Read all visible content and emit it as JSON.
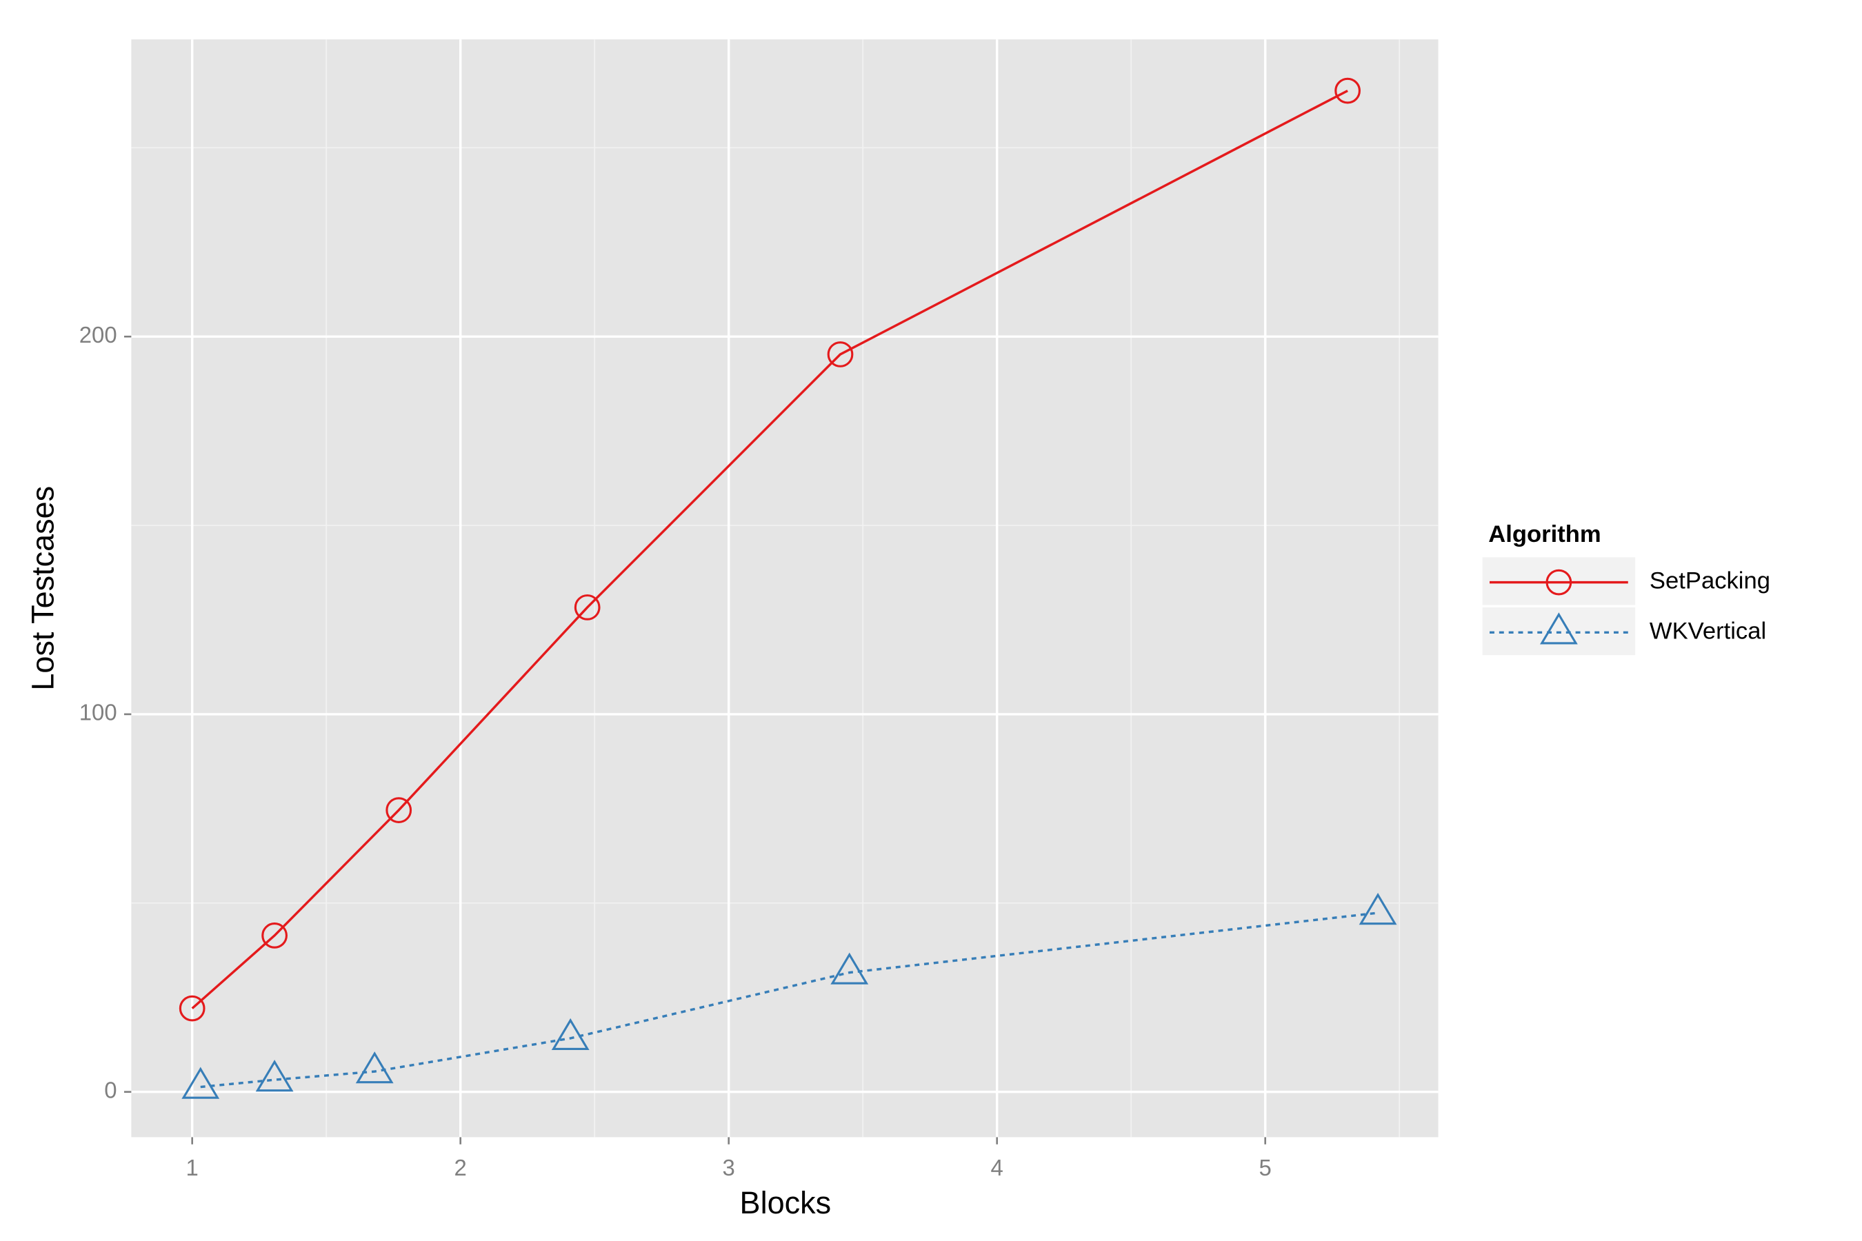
{
  "chart_data": {
    "type": "line",
    "x_label": "Blocks",
    "y_label": "Lost Testcases",
    "legend_title": "Algorithm",
    "legend": "right",
    "xlim": [
      0.773,
      5.645
    ],
    "ylim": [
      -12,
      278.7
    ],
    "xticks": [
      1,
      2,
      3,
      4,
      5
    ],
    "yticks": [
      0,
      100,
      200
    ],
    "grid": true,
    "series": [
      {
        "name": "SetPacking",
        "color": "#e41a1c",
        "marker": "circle",
        "line_style": "solid",
        "x": [
          1.0,
          1.307,
          1.77,
          2.473,
          3.416,
          5.307
        ],
        "values": [
          22.1,
          41.4,
          74.6,
          128.3,
          195.3,
          265.1
        ]
      },
      {
        "name": "WKVertical",
        "color": "#377eb8",
        "marker": "triangle",
        "line_style": "dotted",
        "x": [
          1.031,
          1.307,
          1.68,
          2.41,
          3.45,
          5.42
        ],
        "values": [
          1.3,
          3.2,
          5.4,
          14.2,
          31.6,
          47.4
        ]
      }
    ]
  }
}
